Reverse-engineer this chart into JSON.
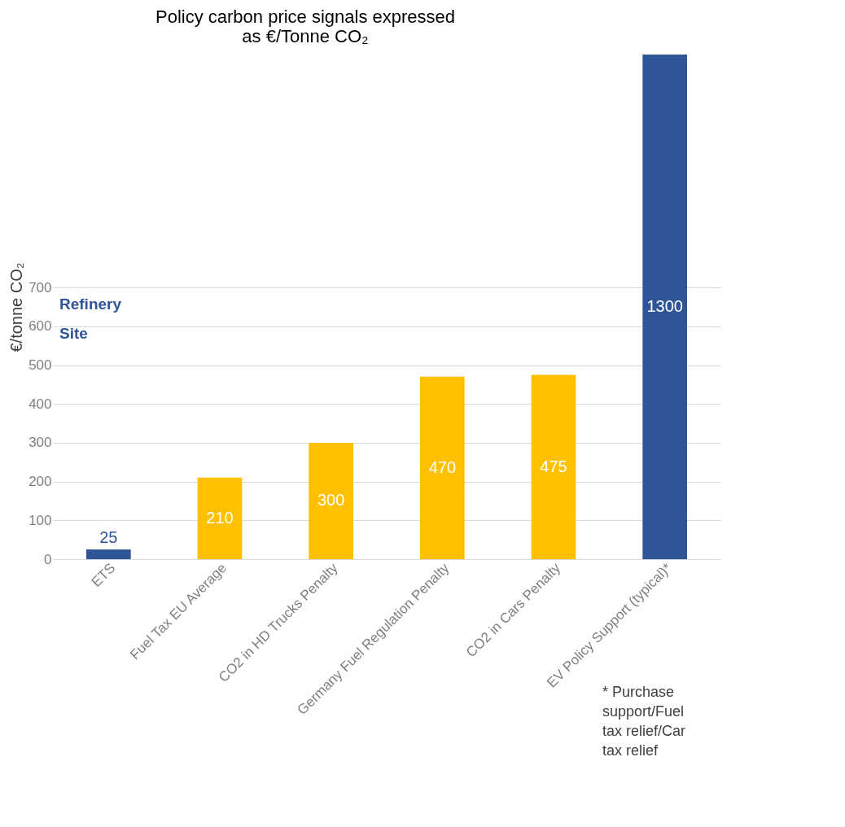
{
  "chart_data": {
    "type": "bar",
    "title": [
      "Policy carbon price signals expressed",
      "as €/Tonne CO₂"
    ],
    "ylabel": "€/tonne CO₂",
    "categories": [
      "ETS",
      "Fuel Tax EU Average",
      "CO2 in HD Trucks Penalty",
      "Germany Fuel Regulation Penalty",
      "CO2 in Cars Penalty",
      "EV Policy Support (typical)*"
    ],
    "values": [
      25,
      210,
      300,
      470,
      475,
      1300
    ],
    "colors": [
      "#2f5597",
      "#ffc000",
      "#ffc000",
      "#ffc000",
      "#ffc000",
      "#2f5597"
    ],
    "ylim": [
      0,
      1300
    ],
    "yticks": [
      0,
      100,
      200,
      300,
      400,
      500,
      600,
      700
    ],
    "grid": "y",
    "data_labels": true,
    "annotations": [
      "Refinery Site",
      "* Purchase support/Fuel tax relief/Car tax relief"
    ]
  }
}
